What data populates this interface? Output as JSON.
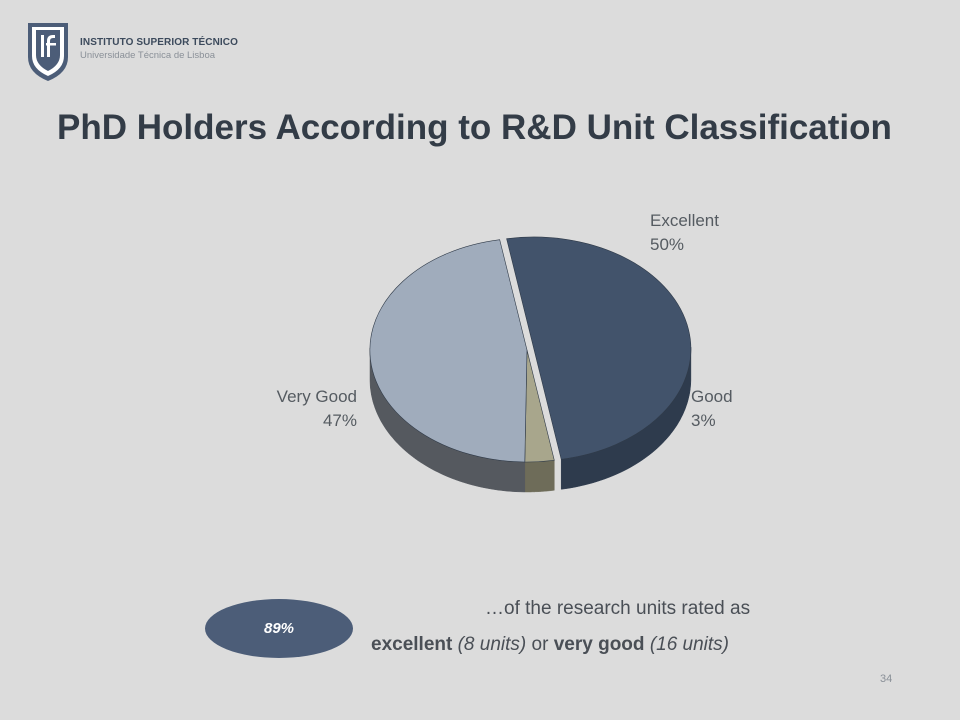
{
  "header": {
    "institution": "INSTITUTO SUPERIOR TÉCNICO",
    "university": "Universidade Técnica de Lisboa",
    "logo_icon": "ist-shield-logo-icon"
  },
  "title": "PhD Holders According to R&D Unit Classification",
  "chart_data": {
    "type": "pie",
    "title": "PhD Holders According to R&D Unit Classification",
    "slices": [
      {
        "label": "Excellent",
        "value": 50,
        "value_label": "50%",
        "color": "#42536b",
        "side_color": "#2e3b4d"
      },
      {
        "label": "Good",
        "value": 3,
        "value_label": "3%",
        "color": "#a8a68c",
        "side_color": "#6e6c59"
      },
      {
        "label": "Very Good",
        "value": 47,
        "value_label": "47%",
        "color": "#a0acbc",
        "side_color": "#55595f"
      }
    ],
    "style": "3d-tilted"
  },
  "summary": {
    "badge": "89%",
    "line1": "…of the research units rated as",
    "line2_bold1": "excellent",
    "line2_italic1": "(8 units)",
    "line2_mid": "or",
    "line2_bold2": "very good",
    "line2_italic2": "(16 units)"
  },
  "footer": {
    "page_number": "34"
  }
}
